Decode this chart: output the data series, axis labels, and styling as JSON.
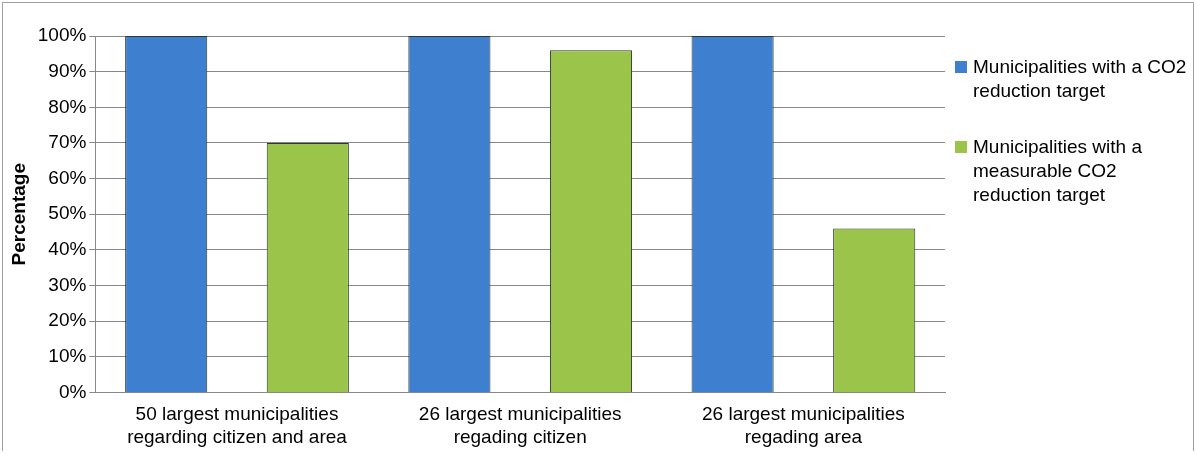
{
  "chart_data": {
    "type": "bar",
    "ylabel": "Percentage",
    "categories": [
      "50 largest municipalities regarding citizen and area",
      "26 largest municipalities regading citizen",
      "26 largest municipalities regading area"
    ],
    "series": [
      {
        "name": "Municipalities with a CO2 reduction target",
        "color": "#3f7fcf",
        "values": [
          100,
          100,
          100
        ]
      },
      {
        "name": "Municipalities with a measurable CO2 reduction target",
        "color": "#9bc44a",
        "values": [
          70,
          96,
          46
        ]
      }
    ],
    "ylim": [
      0,
      100
    ],
    "yticks": [
      {
        "value": 0,
        "label": "0%"
      },
      {
        "value": 10,
        "label": "10%"
      },
      {
        "value": 20,
        "label": "20%"
      },
      {
        "value": 30,
        "label": "30%"
      },
      {
        "value": 40,
        "label": "40%"
      },
      {
        "value": 50,
        "label": "50%"
      },
      {
        "value": 60,
        "label": "60%"
      },
      {
        "value": 70,
        "label": "70%"
      },
      {
        "value": 80,
        "label": "80%"
      },
      {
        "value": 90,
        "label": "90%"
      },
      {
        "value": 100,
        "label": "100%"
      }
    ],
    "grid": "y",
    "legend": "right"
  }
}
